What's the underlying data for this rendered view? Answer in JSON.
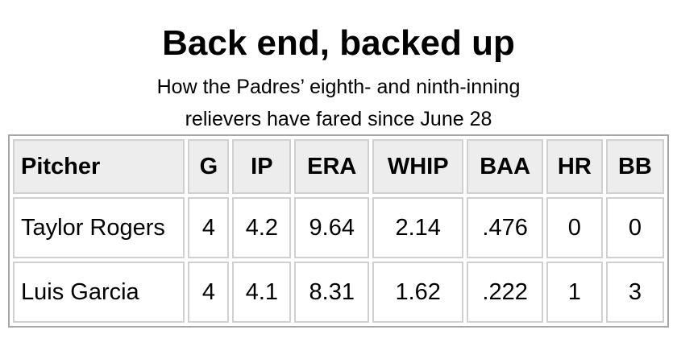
{
  "header": {
    "title": "Back end, backed up",
    "subtitle_lines": [
      "How the Padres’ eighth- and ninth-inning",
      "relievers have fared since June 28"
    ]
  },
  "table": {
    "columns": [
      "Pitcher",
      "G",
      "IP",
      "ERA",
      "WHIP",
      "BAA",
      "HR",
      "BB"
    ],
    "rows": [
      [
        "Taylor Rogers",
        "4",
        "4.2",
        "9.64",
        "2.14",
        ".476",
        "0",
        "0"
      ],
      [
        "Luis Garcia",
        "4",
        "4.1",
        "8.31",
        "1.62",
        ".222",
        "1",
        "3"
      ]
    ]
  }
}
